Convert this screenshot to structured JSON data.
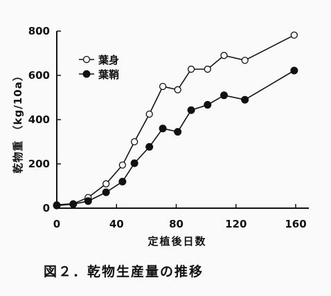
{
  "chart_data": {
    "type": "line",
    "title": "",
    "xlabel": "定植後日数",
    "ylabel": "乾物重 （kg/10a）",
    "xlim": [
      0,
      160
    ],
    "ylim": [
      0,
      800
    ],
    "x_ticks": [
      "0",
      "40",
      "80",
      "120",
      "160"
    ],
    "y_ticks": [
      "0",
      "200",
      "400",
      "600",
      "800"
    ],
    "grid": false,
    "legend_position": "top-left",
    "series": [
      {
        "name": "葉身",
        "marker": "open-circle",
        "x": [
          0,
          11,
          21,
          33,
          44,
          52,
          62,
          71,
          81,
          90,
          101,
          112,
          126,
          159
        ],
        "y": [
          15,
          20,
          48,
          110,
          195,
          300,
          425,
          550,
          535,
          628,
          628,
          690,
          668,
          782
        ]
      },
      {
        "name": "葉鞘",
        "marker": "filled-circle",
        "x": [
          0,
          11,
          21,
          33,
          44,
          52,
          62,
          71,
          81,
          90,
          101,
          112,
          126,
          159
        ],
        "y": [
          12,
          18,
          32,
          72,
          120,
          203,
          277,
          360,
          345,
          443,
          467,
          510,
          490,
          622
        ]
      }
    ]
  },
  "caption": "図２．乾物生産量の推移"
}
